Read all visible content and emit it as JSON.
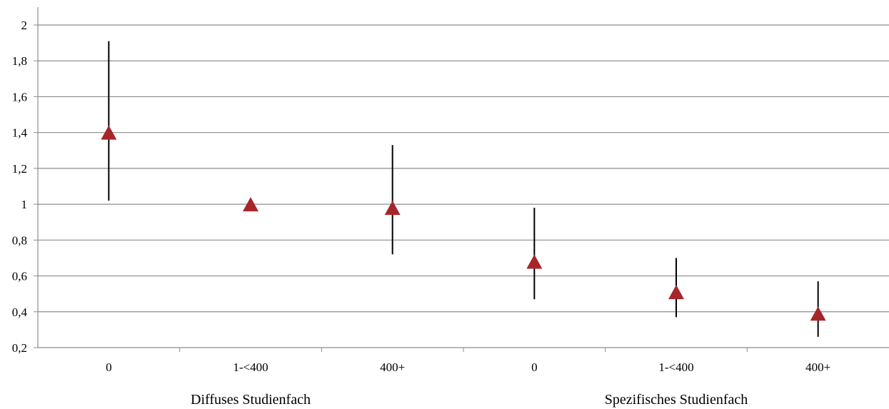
{
  "chart_data": {
    "type": "scatter",
    "subtype": "point-with-error-bars",
    "title": "",
    "xlabel": "",
    "ylabel": "",
    "ylim": [
      0.2,
      2
    ],
    "y_ticks": [
      "0,2",
      "0,4",
      "0,6",
      "0,8",
      "1",
      "1,2",
      "1,4",
      "1,6",
      "1,8",
      "2"
    ],
    "y_tick_values": [
      0.2,
      0.4,
      0.6,
      0.8,
      1.0,
      1.2,
      1.4,
      1.6,
      1.8,
      2.0
    ],
    "grid": true,
    "categories": [
      "0",
      "1-<400",
      "400+",
      "0",
      "1-<400",
      "400+"
    ],
    "groups": [
      {
        "label": "Diffuses Studienfach",
        "start": 0,
        "count": 3
      },
      {
        "label": "Spezifisches Studienfach",
        "start": 3,
        "count": 3
      }
    ],
    "series": [
      {
        "values": [
          1.4,
          1.0,
          0.98,
          0.68,
          0.51,
          0.39
        ],
        "lower": [
          1.02,
          null,
          0.72,
          0.47,
          0.37,
          0.26
        ],
        "upper": [
          1.91,
          null,
          1.33,
          0.98,
          0.7,
          0.57
        ],
        "color": "#a6262a",
        "marker": "triangle"
      }
    ],
    "colors": {
      "grid": "#8c8c8c",
      "axis": "#8c8c8c",
      "error_bar": "#000000"
    }
  }
}
